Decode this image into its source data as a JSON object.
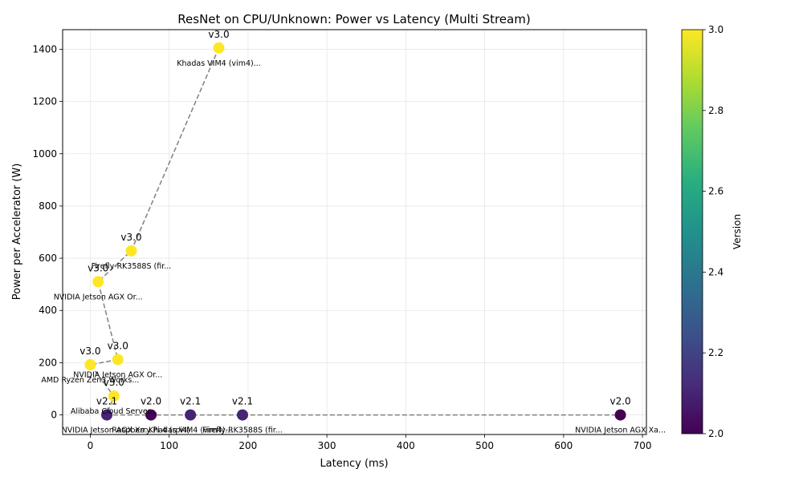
{
  "chart_data": {
    "type": "scatter",
    "title": "ResNet on CPU/Unknown: Power vs Latency (Multi Stream)",
    "xlabel": "Latency (ms)",
    "ylabel": "Power per Accelerator (W)",
    "xlim": [
      -35,
      705
    ],
    "ylim": [
      -75,
      1475
    ],
    "xticks": [
      0,
      100,
      200,
      300,
      400,
      500,
      600,
      700
    ],
    "yticks": [
      0,
      200,
      400,
      600,
      800,
      1000,
      1200,
      1400
    ],
    "grid": true,
    "colorbar": {
      "label": "Version",
      "range": [
        2.0,
        3.0
      ],
      "ticks": [
        "2.0",
        "2.2",
        "2.4",
        "2.6",
        "2.8",
        "3.0"
      ],
      "colormap": "viridis"
    },
    "connector": {
      "style": "dashed",
      "color": "#808080"
    },
    "points": [
      {
        "x": 163,
        "y": 1405,
        "version": 3.0,
        "version_label": "v3.0",
        "name": "Khadas VIM4 (vim4)..."
      },
      {
        "x": 52,
        "y": 628,
        "version": 3.0,
        "version_label": "v3.0",
        "name": "Firefly-RK3588S (fir..."
      },
      {
        "x": 10,
        "y": 510,
        "version": 3.0,
        "version_label": "v3.0",
        "name": "NVIDIA Jetson AGX Or..."
      },
      {
        "x": 35,
        "y": 212,
        "version": 3.0,
        "version_label": "v3.0",
        "name": "NVIDIA Jetson AGX Or..."
      },
      {
        "x": 0,
        "y": 192,
        "version": 3.0,
        "version_label": "v3.0",
        "name": "AMD Ryzen Zen3 Works..."
      },
      {
        "x": 30,
        "y": 72,
        "version": 3.0,
        "version_label": "v3.0",
        "name": "Alibaba Cloud Server..."
      },
      {
        "x": 21,
        "y": 0,
        "version": 2.1,
        "version_label": "v2.1",
        "name": "NVIDIA Jetson AGX Xa..."
      },
      {
        "x": 77,
        "y": 0,
        "version": 2.0,
        "version_label": "v2.0",
        "name": "Raspberry Pi 4 (rpi4)"
      },
      {
        "x": 127,
        "y": 0,
        "version": 2.1,
        "version_label": "v2.1",
        "name": "Khadas VIM4 (vim4)..."
      },
      {
        "x": 193,
        "y": 0,
        "version": 2.1,
        "version_label": "v2.1",
        "name": "Firefly-RK3588S (fir..."
      },
      {
        "x": 672,
        "y": 0,
        "version": 2.0,
        "version_label": "v2.0",
        "name": "NVIDIA Jetson AGX Xa..."
      }
    ]
  }
}
